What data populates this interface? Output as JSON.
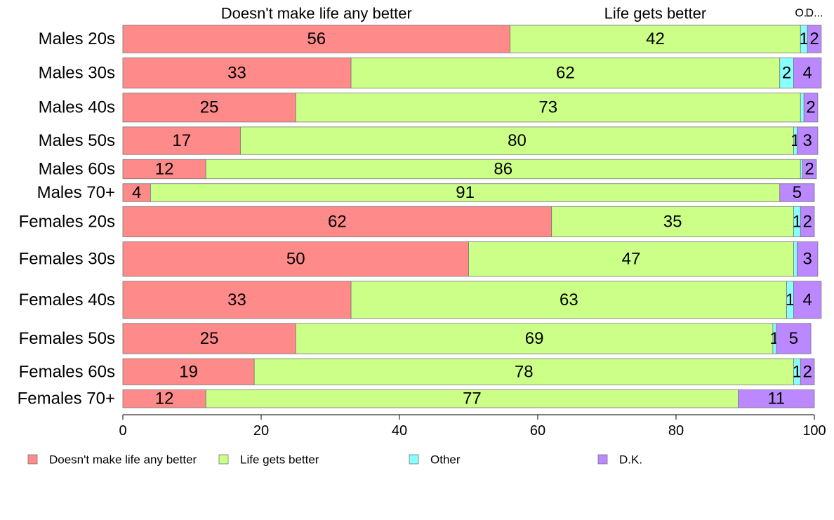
{
  "chart_data": {
    "type": "bar",
    "orientation": "horizontal",
    "stacked": true,
    "categories": [
      "Males 20s",
      "Males 30s",
      "Males 40s",
      "Males 50s",
      "Males 60s",
      "Males 70+",
      "Females 20s",
      "Females 30s",
      "Females 40s",
      "Females 50s",
      "Females 60s",
      "Females 70+"
    ],
    "series": [
      {
        "name": "Doesn't make life any better",
        "color": "#ff8a8a",
        "values": [
          56,
          33,
          25,
          17,
          12,
          4,
          62,
          50,
          33,
          25,
          19,
          12
        ]
      },
      {
        "name": "Life gets better",
        "color": "#ccff88",
        "values": [
          42,
          62,
          73,
          80,
          86,
          91,
          35,
          47,
          63,
          69,
          78,
          77
        ]
      },
      {
        "name": "Other",
        "color": "#88ffff",
        "values": [
          1,
          2,
          0.5,
          0.5,
          0.3,
          0,
          1,
          0.5,
          1,
          0.5,
          1,
          0
        ]
      },
      {
        "name": "D.K.",
        "color": "#bb88ff",
        "values": [
          2,
          4,
          2,
          3,
          2,
          5,
          2,
          3,
          4,
          5,
          2,
          11
        ]
      }
    ],
    "data_labels": [
      [
        "56",
        "42",
        "1",
        "2"
      ],
      [
        "33",
        "62",
        "2",
        "4"
      ],
      [
        "25",
        "73",
        "",
        "2"
      ],
      [
        "17",
        "80",
        "1",
        "3"
      ],
      [
        "12",
        "86",
        "",
        "2"
      ],
      [
        "4",
        "91",
        "",
        "5"
      ],
      [
        "62",
        "35",
        "1",
        "2"
      ],
      [
        "50",
        "47",
        "",
        "3"
      ],
      [
        "33",
        "63",
        "1",
        "4"
      ],
      [
        "25",
        "69",
        "1",
        "5"
      ],
      [
        "19",
        "78",
        "1",
        "2"
      ],
      [
        "12",
        "77",
        "",
        "11"
      ]
    ],
    "top_labels": [
      "Doesn't make life any better",
      "Life gets better",
      "O...",
      "D..."
    ],
    "bar_weights": [
      1.0,
      1.1,
      1.05,
      1.0,
      0.7,
      0.65,
      1.1,
      1.25,
      1.35,
      1.1,
      0.95,
      0.65
    ],
    "xlim": [
      0,
      100
    ],
    "xticks": [
      0,
      20,
      40,
      60,
      80,
      100
    ],
    "grid": false,
    "legend_position": "bottom"
  }
}
